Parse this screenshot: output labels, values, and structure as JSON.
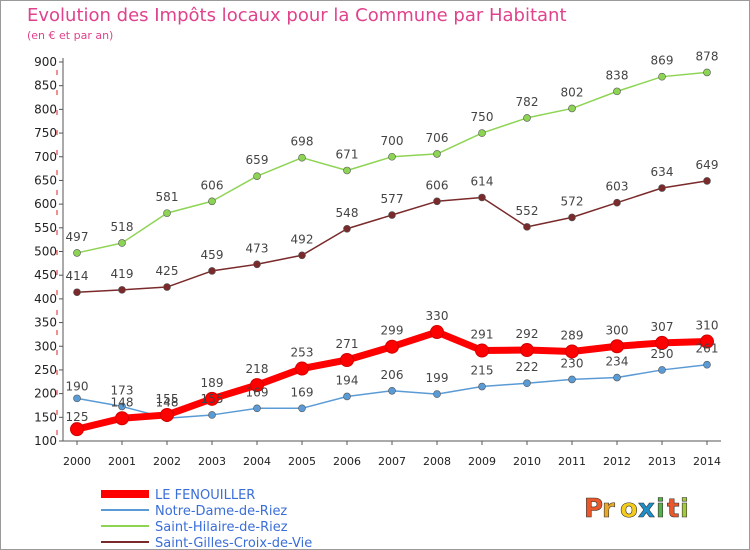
{
  "chart_data": {
    "type": "line",
    "title": "Evolution des Impôts locaux pour la Commune par Habitant",
    "subtitle": "(en € et par an)",
    "categories": [
      "2000",
      "2001",
      "2002",
      "2003",
      "2004",
      "2005",
      "2006",
      "2007",
      "2008",
      "2009",
      "2010",
      "2011",
      "2012",
      "2013",
      "2014"
    ],
    "ylim": [
      100,
      900
    ],
    "yticks": [
      100,
      150,
      200,
      250,
      300,
      350,
      400,
      450,
      500,
      550,
      600,
      650,
      700,
      750,
      800,
      850,
      900
    ],
    "grid": false,
    "legend_position": "bottom-left",
    "series": [
      {
        "name": "LE FENOUILLER",
        "color": "#ff0000",
        "values": [
          125,
          148,
          155,
          189,
          218,
          253,
          271,
          299,
          330,
          291,
          292,
          289,
          300,
          307,
          310
        ]
      },
      {
        "name": "Notre-Dame-de-Riez",
        "color": "#5b9bd5",
        "values": [
          190,
          173,
          148,
          155,
          169,
          169,
          194,
          206,
          199,
          215,
          222,
          230,
          234,
          250,
          261
        ]
      },
      {
        "name": "Saint-Hilaire-de-Riez",
        "color": "#8ed454",
        "values": [
          497,
          518,
          581,
          606,
          659,
          698,
          671,
          700,
          706,
          750,
          782,
          802,
          838,
          869,
          878
        ]
      },
      {
        "name": "Saint-Gilles-Croix-de-Vie",
        "color": "#7a2a2a",
        "values": [
          414,
          419,
          425,
          459,
          473,
          492,
          548,
          577,
          606,
          614,
          552,
          572,
          603,
          634,
          649
        ]
      }
    ]
  },
  "logo": {
    "text": "Proxiti",
    "colors": [
      "#e8582a",
      "#e8a82a",
      "#f4cc1c",
      "#1e8ec9",
      "#57b04a",
      "#e8582a",
      "#a5c83c"
    ]
  }
}
